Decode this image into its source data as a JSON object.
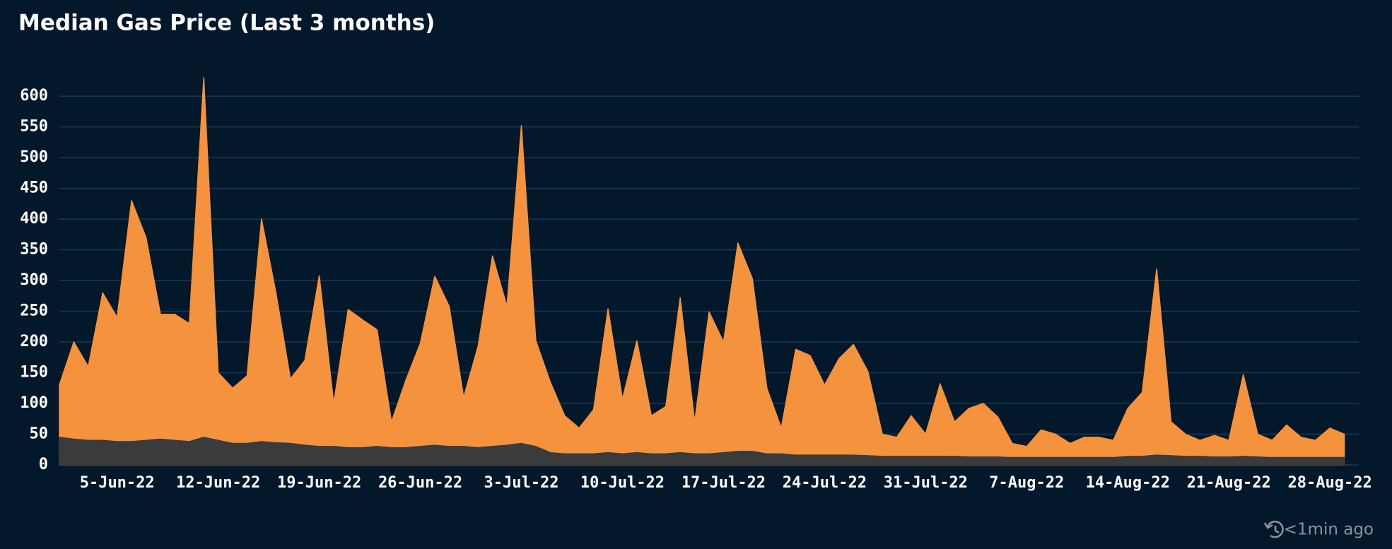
{
  "chart_data": {
    "type": "area",
    "title": "Median Gas Price (Last 3 months)",
    "x": [
      "2022-06-01",
      "2022-06-02",
      "2022-06-03",
      "2022-06-04",
      "2022-06-05",
      "2022-06-06",
      "2022-06-07",
      "2022-06-08",
      "2022-06-09",
      "2022-06-10",
      "2022-06-11",
      "2022-06-12",
      "2022-06-13",
      "2022-06-14",
      "2022-06-15",
      "2022-06-16",
      "2022-06-17",
      "2022-06-18",
      "2022-06-19",
      "2022-06-20",
      "2022-06-21",
      "2022-06-22",
      "2022-06-23",
      "2022-06-24",
      "2022-06-25",
      "2022-06-26",
      "2022-06-27",
      "2022-06-28",
      "2022-06-29",
      "2022-06-30",
      "2022-07-01",
      "2022-07-02",
      "2022-07-03",
      "2022-07-04",
      "2022-07-05",
      "2022-07-06",
      "2022-07-07",
      "2022-07-08",
      "2022-07-09",
      "2022-07-10",
      "2022-07-11",
      "2022-07-12",
      "2022-07-13",
      "2022-07-14",
      "2022-07-15",
      "2022-07-16",
      "2022-07-17",
      "2022-07-18",
      "2022-07-19",
      "2022-07-20",
      "2022-07-21",
      "2022-07-22",
      "2022-07-23",
      "2022-07-24",
      "2022-07-25",
      "2022-07-26",
      "2022-07-27",
      "2022-07-28",
      "2022-07-29",
      "2022-07-30",
      "2022-07-31",
      "2022-08-01",
      "2022-08-02",
      "2022-08-03",
      "2022-08-04",
      "2022-08-05",
      "2022-08-06",
      "2022-08-07",
      "2022-08-08",
      "2022-08-09",
      "2022-08-10",
      "2022-08-11",
      "2022-08-12",
      "2022-08-13",
      "2022-08-14",
      "2022-08-15",
      "2022-08-16",
      "2022-08-17",
      "2022-08-18",
      "2022-08-19",
      "2022-08-20",
      "2022-08-21",
      "2022-08-22",
      "2022-08-23",
      "2022-08-24",
      "2022-08-25",
      "2022-08-26",
      "2022-08-27",
      "2022-08-28",
      "2022-08-29"
    ],
    "series": [
      {
        "color": "#f5923e",
        "values": [
          130,
          200,
          160,
          280,
          240,
          430,
          370,
          245,
          245,
          230,
          630,
          150,
          125,
          145,
          400,
          280,
          140,
          170,
          308,
          100,
          253,
          236,
          220,
          70,
          138,
          198,
          307,
          258,
          110,
          193,
          340,
          258,
          552,
          202,
          135,
          80,
          60,
          90,
          254,
          107,
          202,
          80,
          95,
          272,
          70,
          249,
          200,
          361,
          303,
          125,
          60,
          188,
          178,
          130,
          173,
          196,
          152,
          50,
          45,
          80,
          50,
          132,
          70,
          92,
          100,
          78,
          35,
          30,
          57,
          50,
          35,
          45,
          45,
          40,
          92,
          118,
          319,
          70,
          50,
          40,
          48,
          40,
          147,
          50,
          40,
          65,
          45,
          40,
          60,
          50
        ]
      },
      {
        "color": "#3b3b3b",
        "values": [
          45,
          42,
          40,
          40,
          38,
          38,
          40,
          42,
          40,
          38,
          45,
          40,
          35,
          35,
          38,
          36,
          35,
          32,
          30,
          30,
          28,
          28,
          30,
          28,
          28,
          30,
          32,
          30,
          30,
          28,
          30,
          32,
          35,
          30,
          20,
          18,
          18,
          18,
          20,
          18,
          20,
          18,
          18,
          20,
          18,
          18,
          20,
          22,
          22,
          18,
          18,
          16,
          16,
          16,
          16,
          16,
          15,
          14,
          14,
          14,
          14,
          14,
          14,
          13,
          13,
          13,
          12,
          12,
          12,
          12,
          12,
          12,
          12,
          12,
          14,
          14,
          16,
          15,
          14,
          14,
          13,
          13,
          14,
          13,
          12,
          12,
          12,
          12,
          12,
          12
        ]
      }
    ],
    "xlim": [
      "2022-06-01",
      "2022-08-30"
    ],
    "xticks": [
      {
        "value": "2022-06-05",
        "label": "5-Jun-22"
      },
      {
        "value": "2022-06-12",
        "label": "12-Jun-22"
      },
      {
        "value": "2022-06-19",
        "label": "19-Jun-22"
      },
      {
        "value": "2022-06-26",
        "label": "26-Jun-22"
      },
      {
        "value": "2022-07-03",
        "label": "3-Jul-22"
      },
      {
        "value": "2022-07-10",
        "label": "10-Jul-22"
      },
      {
        "value": "2022-07-17",
        "label": "17-Jul-22"
      },
      {
        "value": "2022-07-24",
        "label": "24-Jul-22"
      },
      {
        "value": "2022-07-31",
        "label": "31-Jul-22"
      },
      {
        "value": "2022-08-07",
        "label": "7-Aug-22"
      },
      {
        "value": "2022-08-14",
        "label": "14-Aug-22"
      },
      {
        "value": "2022-08-21",
        "label": "21-Aug-22"
      },
      {
        "value": "2022-08-28",
        "label": "28-Aug-22"
      }
    ],
    "ylim": [
      0,
      630
    ],
    "yticks": [
      0,
      50,
      100,
      150,
      200,
      250,
      300,
      350,
      400,
      450,
      500,
      550,
      600
    ],
    "grid": true
  },
  "footer": "<1min ago"
}
